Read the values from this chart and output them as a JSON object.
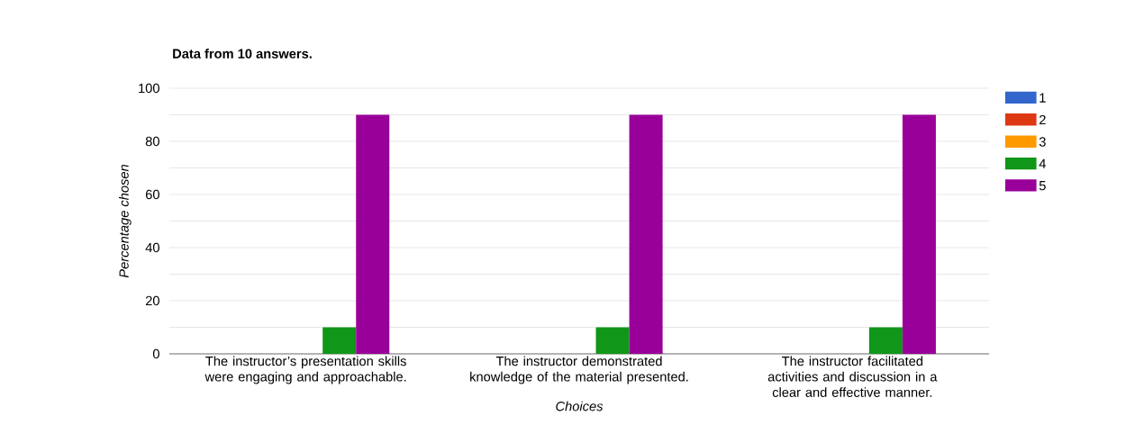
{
  "chart_data": {
    "type": "bar",
    "title": "Data from 10 answers.",
    "xlabel": "Choices",
    "ylabel": "Percentage chosen",
    "categories": [
      "The instructor’s presentation skills were engaging and approachable.",
      "The instructor demonstrated knowledge of the material presented.",
      "The instructor facilitated activities and discussion in a clear and effective manner."
    ],
    "series": [
      {
        "name": "1",
        "color": "#3366cc",
        "values": [
          0,
          0,
          0
        ]
      },
      {
        "name": "2",
        "color": "#dc3912",
        "values": [
          0,
          0,
          0
        ]
      },
      {
        "name": "3",
        "color": "#ff9900",
        "values": [
          0,
          0,
          0
        ]
      },
      {
        "name": "4",
        "color": "#109618",
        "values": [
          10,
          10,
          10
        ]
      },
      {
        "name": "5",
        "color": "#990099",
        "values": [
          90,
          90,
          90
        ]
      }
    ],
    "ylim": [
      0,
      100
    ],
    "yticks": [
      0,
      {
        "value": 10,
        "label": null
      },
      20,
      {
        "value": 30,
        "label": null
      },
      40,
      {
        "value": 50,
        "label": null
      },
      60,
      {
        "value": 70,
        "label": null
      },
      80,
      {
        "value": 90,
        "label": null
      },
      100
    ],
    "grid": true,
    "legend": "top right"
  }
}
